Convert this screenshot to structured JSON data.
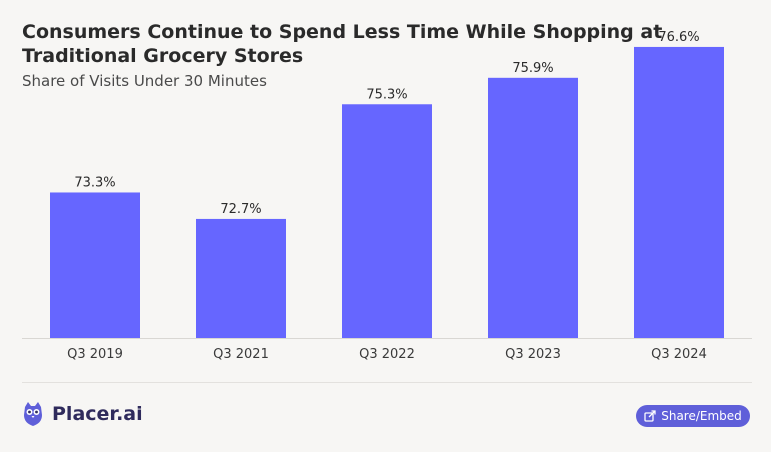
{
  "header": {
    "title": "Consumers Continue to Spend Less Time While Shopping at Traditional Grocery Stores",
    "subtitle": "Share of Visits Under 30 Minutes"
  },
  "footer": {
    "brand": "Placer.ai",
    "share_label": "Share/Embed",
    "share_icon": "share-icon"
  },
  "colors": {
    "bar": "#6666ff",
    "background": "#f7f6f4"
  },
  "chart_data": {
    "type": "bar",
    "title": "Consumers Continue to Spend Less Time While Shopping at Traditional Grocery Stores",
    "subtitle": "Share of Visits Under 30 Minutes",
    "categories": [
      "Q3 2019",
      "Q3 2021",
      "Q3 2022",
      "Q3 2023",
      "Q3 2024"
    ],
    "values": [
      73.3,
      72.7,
      75.3,
      75.9,
      76.6
    ],
    "labels": [
      "73.3%",
      "72.7%",
      "75.3%",
      "75.9%",
      "76.6%"
    ],
    "unit": "%",
    "xlabel": "",
    "ylabel": "",
    "grid": false,
    "legend": "none"
  }
}
